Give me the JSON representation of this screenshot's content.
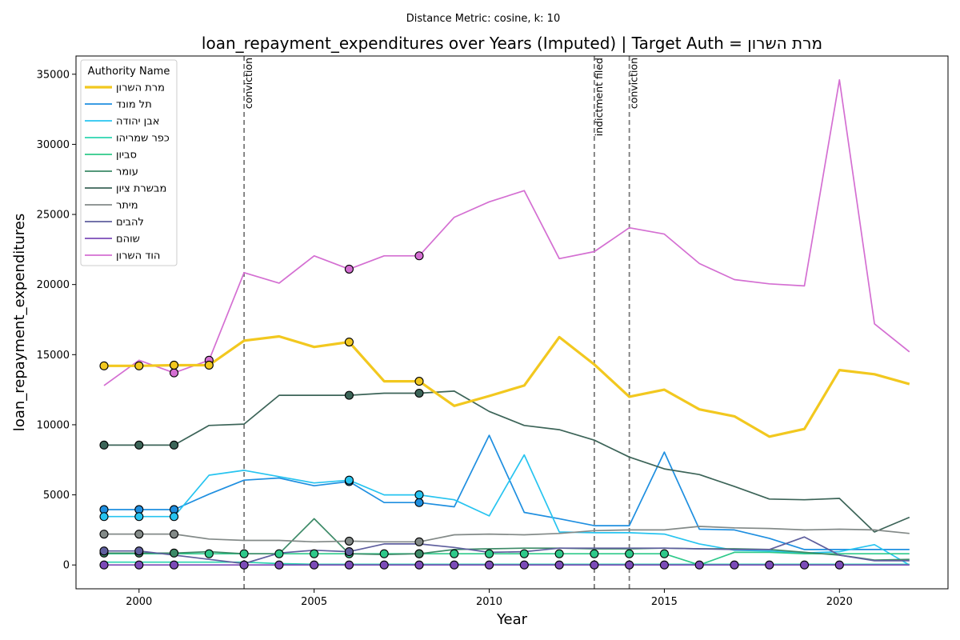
{
  "chart_data": {
    "type": "line",
    "suptitle": "Distance Metric: cosine, k: 10",
    "title": "loan_repayment_expenditures over Years (Imputed) | Target Auth = מרת השרון",
    "xlabel": "Year",
    "ylabel": "loan_repayment_expenditures",
    "xlim": [
      1998.2,
      2023.1
    ],
    "ylim": [
      -1700,
      36300
    ],
    "xticks": [
      2000,
      2005,
      2010,
      2015,
      2020
    ],
    "yticks": [
      0,
      5000,
      10000,
      15000,
      20000,
      25000,
      30000,
      35000
    ],
    "grid": false,
    "legend": {
      "title": "Authority Name",
      "placement": "top-left"
    },
    "events": [
      {
        "x": 2003,
        "label": "conviction"
      },
      {
        "x": 2013,
        "label": "indictment filed"
      },
      {
        "x": 2014,
        "label": "conviction"
      }
    ],
    "years": [
      1999,
      2000,
      2001,
      2002,
      2003,
      2004,
      2005,
      2006,
      2007,
      2008,
      2009,
      2010,
      2011,
      2012,
      2013,
      2014,
      2015,
      2016,
      2017,
      2018,
      2019,
      2020,
      2021,
      2022
    ],
    "series": [
      {
        "name": "מרת השרון",
        "color": "#f2c81f",
        "target": true,
        "values": [
          14200,
          14200,
          14250,
          14250,
          16000,
          16300,
          15550,
          15900,
          13100,
          13100,
          11350,
          12050,
          12800,
          16250,
          14300,
          12000,
          12500,
          11100,
          10600,
          9150,
          9700,
          13900,
          13600,
          12900
        ],
        "imputed": [
          1999,
          2000,
          2001,
          2002,
          2006,
          2008
        ]
      },
      {
        "name": "תל מונד",
        "color": "#1f8fe0",
        "values": [
          3950,
          3950,
          3950,
          5050,
          6050,
          6200,
          5650,
          5950,
          4450,
          4450,
          4150,
          9250,
          3750,
          3300,
          2800,
          2800,
          8050,
          2550,
          2500,
          1900,
          1100,
          1100,
          1100,
          1100
        ],
        "imputed": [
          1999,
          2000,
          2001,
          2006,
          2008
        ]
      },
      {
        "name": "אבן יהודה",
        "color": "#27c4f0",
        "values": [
          3450,
          3450,
          3450,
          6400,
          6750,
          6300,
          5850,
          6050,
          5000,
          5000,
          4650,
          3500,
          7850,
          2350,
          2300,
          2300,
          2200,
          1500,
          1050,
          1000,
          850,
          950,
          1450,
          0
        ],
        "imputed": [
          1999,
          2000,
          2001,
          2006,
          2008
        ]
      },
      {
        "name": "כפר שמריהו",
        "color": "#2bd4b0",
        "values": [
          200,
          200,
          200,
          200,
          200,
          100,
          50,
          50,
          50,
          50,
          50,
          50,
          50,
          50,
          50,
          50,
          50,
          50,
          50,
          50,
          50,
          50,
          50,
          50
        ],
        "imputed": []
      },
      {
        "name": "סביון",
        "color": "#2ec98a",
        "values": [
          800,
          800,
          800,
          800,
          800,
          800,
          800,
          800,
          800,
          800,
          800,
          800,
          800,
          800,
          800,
          800,
          800,
          0,
          900,
          900,
          800,
          800,
          800,
          800
        ],
        "imputed": [
          2002,
          2003,
          2004,
          2005,
          2006,
          2007,
          2008,
          2009,
          2010,
          2011,
          2012,
          2013,
          2014,
          2015
        ]
      },
      {
        "name": "עומר",
        "color": "#3c8a67",
        "values": [
          850,
          850,
          850,
          950,
          800,
          800,
          3300,
          800,
          750,
          800,
          1100,
          1150,
          1200,
          1200,
          1150,
          1150,
          1200,
          1150,
          1150,
          1100,
          900,
          700,
          350,
          400
        ],
        "imputed": [
          1999,
          2000,
          2001,
          2008
        ]
      },
      {
        "name": "מבשרת ציון",
        "color": "#3c6458",
        "values": [
          8550,
          8550,
          8550,
          9950,
          10050,
          12100,
          12100,
          12100,
          12250,
          12250,
          12400,
          10950,
          9950,
          9650,
          8900,
          7700,
          6850,
          6450,
          5600,
          4700,
          4650,
          4750,
          2350,
          3400
        ],
        "imputed": [
          1999,
          2000,
          2001,
          2006,
          2008
        ]
      },
      {
        "name": "מיתר",
        "color": "#838a88",
        "values": [
          2200,
          2200,
          2200,
          1850,
          1750,
          1750,
          1650,
          1700,
          1650,
          1650,
          2150,
          2200,
          2150,
          2250,
          2450,
          2500,
          2500,
          2750,
          2650,
          2600,
          2500,
          2550,
          2500,
          2250
        ],
        "imputed": [
          1999,
          2000,
          2001,
          2006,
          2008
        ]
      },
      {
        "name": "להבים",
        "color": "#5f5f9e",
        "values": [
          1000,
          1000,
          700,
          400,
          100,
          850,
          1050,
          950,
          1500,
          1500,
          1250,
          900,
          950,
          1200,
          1200,
          1200,
          1200,
          1150,
          1100,
          1100,
          2000,
          700,
          300,
          300
        ],
        "imputed": [
          1999,
          2000,
          2006
        ]
      },
      {
        "name": "שוהם",
        "color": "#7c4bb8",
        "values": [
          0,
          0,
          0,
          0,
          0,
          0,
          0,
          0,
          0,
          0,
          0,
          0,
          0,
          0,
          0,
          0,
          0,
          0,
          0,
          0,
          0,
          0,
          0,
          0
        ],
        "imputed": [
          1999,
          2000,
          2001,
          2003,
          2004,
          2005,
          2006,
          2007,
          2008,
          2009,
          2010,
          2011,
          2012,
          2013,
          2014,
          2015,
          2016,
          2017,
          2018,
          2019,
          2020
        ]
      },
      {
        "name": "הוד השרון",
        "color": "#d46fd2",
        "values": [
          12800,
          14600,
          13700,
          14600,
          20850,
          20100,
          22050,
          21100,
          22050,
          22050,
          24800,
          25900,
          26700,
          21850,
          22350,
          24050,
          23600,
          21500,
          20350,
          20050,
          19900,
          34600,
          17200,
          15200
        ],
        "imputed": [
          2001,
          2002,
          2006,
          2008
        ]
      }
    ]
  }
}
